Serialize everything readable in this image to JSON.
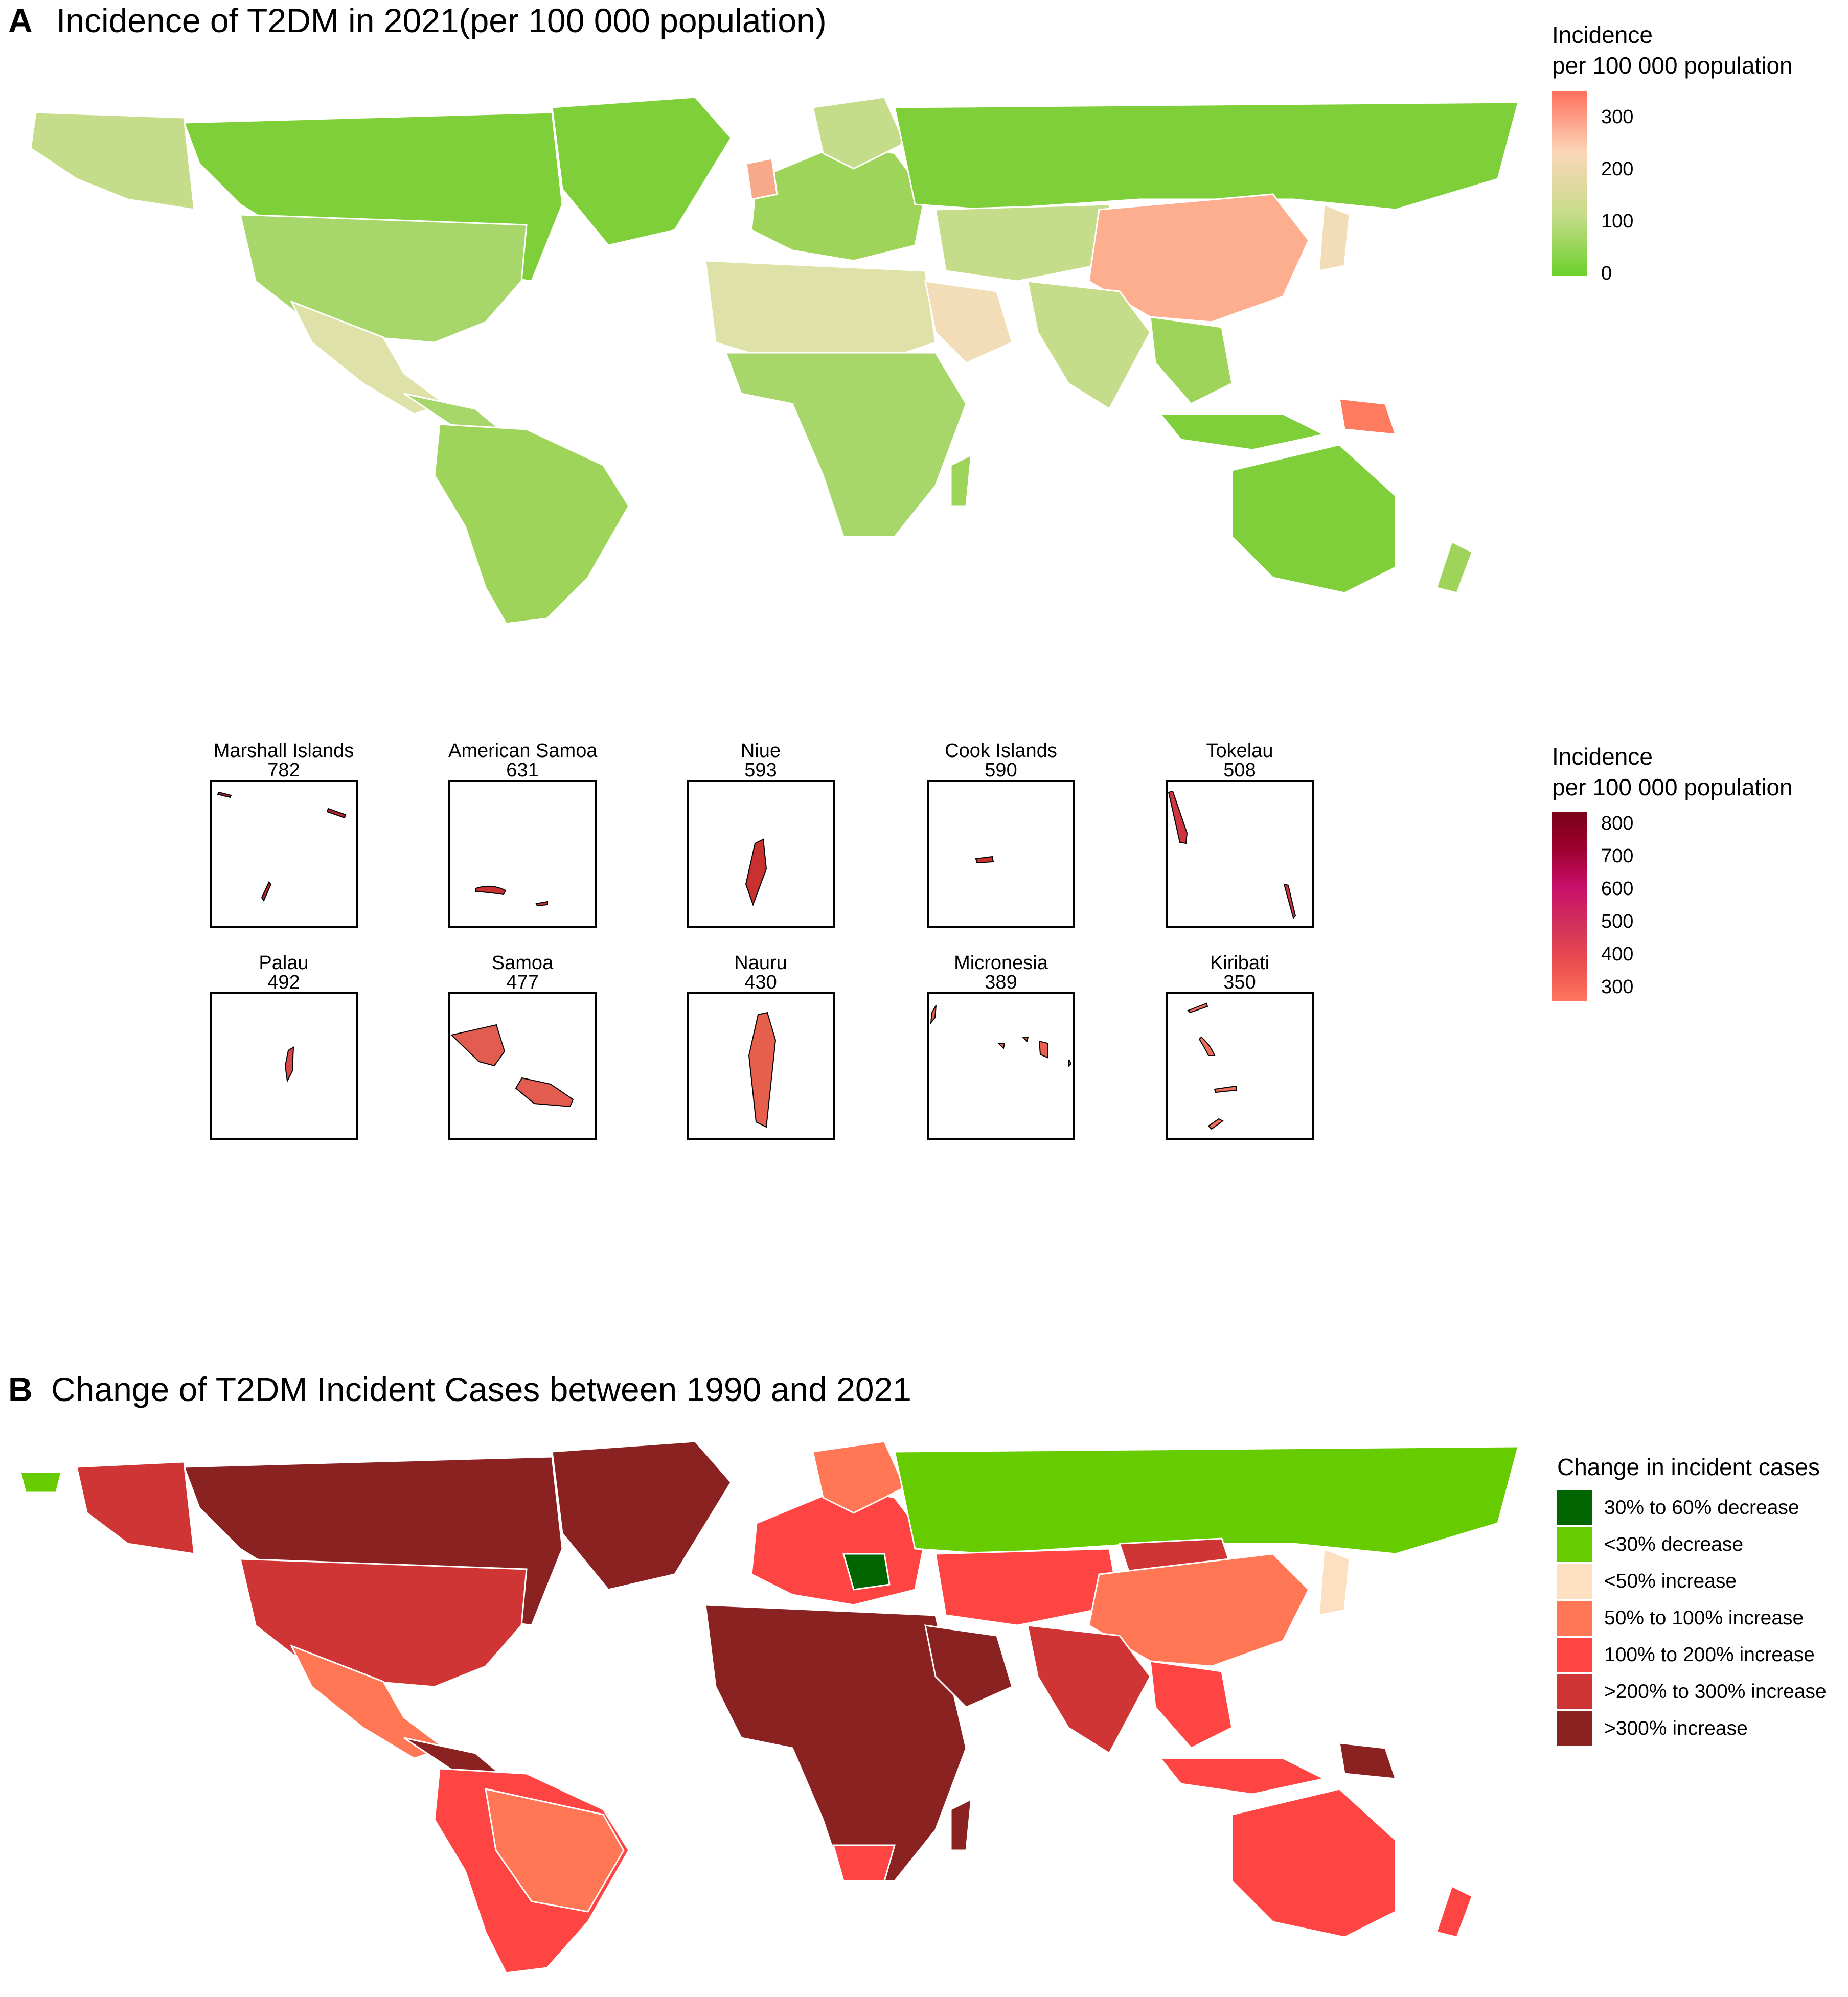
{
  "panel_a": {
    "letter": "A",
    "title": "Incidence of T2DM in 2021(per 100 000 population)",
    "legend": {
      "title_line1": "Incidence",
      "title_line2": "per 100 000 population",
      "ticks": [
        "300",
        "200",
        "100",
        "0"
      ],
      "gradient": [
        "#ff6f5e",
        "#fbd7b8",
        "#c7dc8a",
        "#6cd12a"
      ]
    }
  },
  "insets": {
    "legend": {
      "title_line1": "Incidence",
      "title_line2": "per 100 000 population",
      "ticks": [
        "800",
        "700",
        "600",
        "500",
        "400",
        "300"
      ],
      "gradient": [
        "#7a0018",
        "#9e0030",
        "#c8106a",
        "#d2315a",
        "#ea4e4e",
        "#ff7560"
      ]
    },
    "items": [
      {
        "name": "Marshall Islands",
        "value": "782"
      },
      {
        "name": "American Samoa",
        "value": "631"
      },
      {
        "name": "Niue",
        "value": "593"
      },
      {
        "name": "Cook Islands",
        "value": "590"
      },
      {
        "name": "Tokelau",
        "value": "508"
      },
      {
        "name": "Palau",
        "value": "492"
      },
      {
        "name": "Samoa",
        "value": "477"
      },
      {
        "name": "Nauru",
        "value": "430"
      },
      {
        "name": "Micronesia",
        "value": "389"
      },
      {
        "name": "Kiribati",
        "value": "350"
      }
    ]
  },
  "panel_b": {
    "letter": "B",
    "title": "Change of T2DM Incident Cases between 1990 and 2021",
    "legend": {
      "title": "Change in incident cases",
      "categories": [
        {
          "label": "30% to 60% decrease",
          "color": "#006400"
        },
        {
          "label": "<30% decrease",
          "color": "#66cc00"
        },
        {
          "label": "<50% increase",
          "color": "#fde0c2"
        },
        {
          "label": "50% to 100% increase",
          "color": "#ff7755"
        },
        {
          "label": "100% to 200% increase",
          "color": "#ff4444"
        },
        {
          "label": ">200% to 300% increase",
          "color": "#d03535"
        },
        {
          "label": ">300% increase",
          "color": "#8b2222"
        }
      ]
    }
  }
}
